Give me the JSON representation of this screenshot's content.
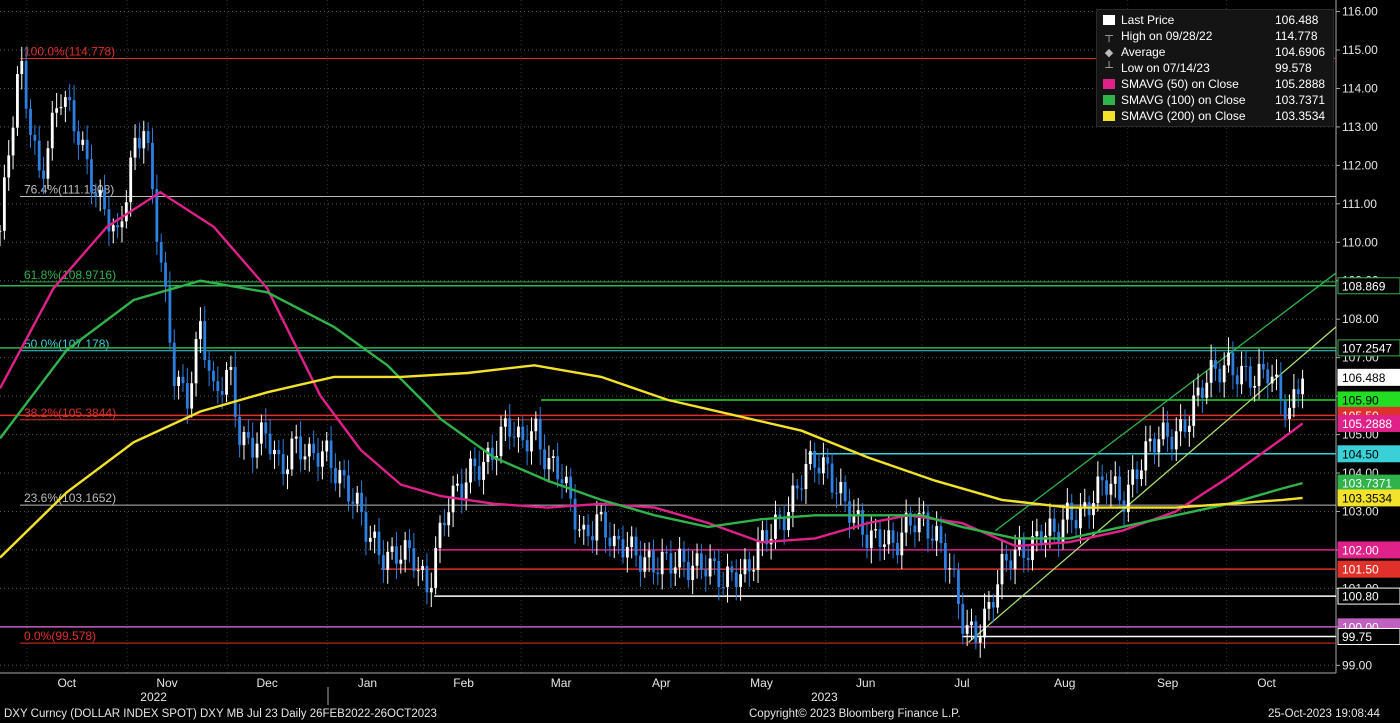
{
  "footer": {
    "left": "DXY Curncy (DOLLAR INDEX SPOT) DXY MB Jul 23  Daily 26FEB2022-26OCT2023",
    "center": "Copyright© 2023 Bloomberg Finance L.P.",
    "right": "25-Oct-2023 19:08:44"
  },
  "legend": [
    {
      "label": "Last Price",
      "value": "106.488",
      "color": "#ffffff",
      "symbol": "box"
    },
    {
      "label": "High on 09/28/22",
      "value": "114.778",
      "color": "#bbbbbb",
      "symbol": "high"
    },
    {
      "label": "Average",
      "value": "104.6906",
      "color": "#bbbbbb",
      "symbol": "avg"
    },
    {
      "label": "Low on 07/14/23",
      "value": "99.578",
      "color": "#bbbbbb",
      "symbol": "low"
    },
    {
      "label": "SMAVG (50)  on Close",
      "value": "105.2888",
      "color": "#e0218a",
      "symbol": "box"
    },
    {
      "label": "SMAVG (100)  on Close",
      "value": "103.7371",
      "color": "#2fb34a",
      "symbol": "box"
    },
    {
      "label": "SMAVG (200)  on Close",
      "value": "103.3534",
      "color": "#f2e22a",
      "symbol": "box"
    }
  ],
  "chart_data": {
    "type": "line",
    "subtype": "candlestick-price-chart",
    "title": "DXY Curncy (DOLLAR INDEX SPOT)",
    "ylim": [
      98.8,
      116.3
    ],
    "y_ticks": [
      "99.00",
      "100.00",
      "101.00",
      "102.00",
      "103.00",
      "104.00",
      "105.00",
      "106.00",
      "107.00",
      "108.00",
      "109.00",
      "110.00",
      "111.00",
      "112.00",
      "113.00",
      "114.00",
      "115.00",
      "116.00"
    ],
    "x_month_labels": [
      {
        "label": "Oct",
        "t": 0.05
      },
      {
        "label": "Nov",
        "t": 0.125
      },
      {
        "label": "Dec",
        "t": 0.2
      },
      {
        "label": "Jan",
        "t": 0.275
      },
      {
        "label": "Feb",
        "t": 0.347
      },
      {
        "label": "Mar",
        "t": 0.42
      },
      {
        "label": "Apr",
        "t": 0.495
      },
      {
        "label": "May",
        "t": 0.57
      },
      {
        "label": "Jun",
        "t": 0.648
      },
      {
        "label": "Jul",
        "t": 0.72
      },
      {
        "label": "Aug",
        "t": 0.797
      },
      {
        "label": "Sep",
        "t": 0.874
      },
      {
        "label": "Oct",
        "t": 0.948
      }
    ],
    "x_year_labels": [
      {
        "label": "2022",
        "t": 0.115
      },
      {
        "label": "2023",
        "t": 0.617
      }
    ],
    "fib_levels": [
      {
        "label": "100.0%(114.778)",
        "value": 114.778,
        "color": "#e0302a"
      },
      {
        "label": "76.4%(111.1908)",
        "value": 111.1908,
        "color": "#bbbbbb"
      },
      {
        "label": "61.8%(108.9716)",
        "value": 108.9716,
        "color": "#2fb34a"
      },
      {
        "label": "50.0%(107.178)",
        "value": 107.178,
        "color": "#3ad0d8"
      },
      {
        "label": "38.2%(105.3844)",
        "value": 105.3844,
        "color": "#e0302a"
      },
      {
        "label": "23.6%(103.1652)",
        "value": 103.1652,
        "color": "#bbbbbb"
      },
      {
        "label": "0.0%(99.578)",
        "value": 99.578,
        "color": "#e0302a"
      }
    ],
    "horizontal_levels": [
      {
        "label": "108.869",
        "value": 108.869,
        "color": "#2fb34a",
        "t_start": 0.0
      },
      {
        "label": "107.2547",
        "value": 107.2547,
        "color": "#2fb34a",
        "t_start": 0.0
      },
      {
        "label": "105.90",
        "value": 105.9,
        "color": "#22dd22",
        "t_start": 0.405
      },
      {
        "label": "105.50",
        "value": 105.5,
        "color": "#e0302a",
        "t_start": 0.0
      },
      {
        "label": "104.50",
        "value": 104.5,
        "color": "#3ad0d8",
        "t_start": 0.605
      },
      {
        "label": "102.00",
        "value": 102.0,
        "color": "#e0218a",
        "t_start": 0.325
      },
      {
        "label": "101.50",
        "value": 101.5,
        "color": "#e0302a",
        "t_start": 0.285
      },
      {
        "label": "100.80",
        "value": 100.8,
        "color": "#ffffff",
        "t_start": 0.325
      },
      {
        "label": "100.00",
        "value": 100.0,
        "color": "#c060c0",
        "t_start": 0.0
      },
      {
        "label": "99.75",
        "value": 99.75,
        "color": "#ffffff",
        "t_start": 0.72
      }
    ],
    "axis_tags": [
      {
        "label": "106.488",
        "value": 106.488,
        "bg": "#ffffff",
        "fg": "#000000"
      },
      {
        "label": "105.2888",
        "value": 105.2888,
        "bg": "#e0218a",
        "fg": "#ffffff"
      },
      {
        "label": "103.7371",
        "value": 103.7371,
        "bg": "#2fb34a",
        "fg": "#ffffff"
      },
      {
        "label": "103.3534",
        "value": 103.3534,
        "bg": "#f2e22a",
        "fg": "#000000"
      }
    ],
    "price_path": [
      [
        0.0,
        110.3
      ],
      [
        0.015,
        114.6
      ],
      [
        0.03,
        111.8
      ],
      [
        0.045,
        113.7
      ],
      [
        0.06,
        112.8
      ],
      [
        0.075,
        111.0
      ],
      [
        0.088,
        109.9
      ],
      [
        0.1,
        112.6
      ],
      [
        0.108,
        113.2
      ],
      [
        0.118,
        110.0
      ],
      [
        0.13,
        106.6
      ],
      [
        0.14,
        106.1
      ],
      [
        0.15,
        107.8
      ],
      [
        0.16,
        105.8
      ],
      [
        0.172,
        106.8
      ],
      [
        0.18,
        105.0
      ],
      [
        0.19,
        104.6
      ],
      [
        0.2,
        104.9
      ],
      [
        0.21,
        104.2
      ],
      [
        0.22,
        104.9
      ],
      [
        0.232,
        104.2
      ],
      [
        0.245,
        104.6
      ],
      [
        0.255,
        104.0
      ],
      [
        0.265,
        103.2
      ],
      [
        0.275,
        102.3
      ],
      [
        0.287,
        102.0
      ],
      [
        0.3,
        101.9
      ],
      [
        0.31,
        101.6
      ],
      [
        0.32,
        101.0
      ],
      [
        0.327,
        102.3
      ],
      [
        0.335,
        103.2
      ],
      [
        0.345,
        103.4
      ],
      [
        0.355,
        104.2
      ],
      [
        0.368,
        104.6
      ],
      [
        0.38,
        105.1
      ],
      [
        0.39,
        104.7
      ],
      [
        0.4,
        105.4
      ],
      [
        0.41,
        104.2
      ],
      [
        0.42,
        103.8
      ],
      [
        0.428,
        103.1
      ],
      [
        0.437,
        102.5
      ],
      [
        0.447,
        102.8
      ],
      [
        0.46,
        101.9
      ],
      [
        0.47,
        102.3
      ],
      [
        0.48,
        101.9
      ],
      [
        0.49,
        101.4
      ],
      [
        0.5,
        101.6
      ],
      [
        0.51,
        101.9
      ],
      [
        0.52,
        101.6
      ],
      [
        0.53,
        101.4
      ],
      [
        0.54,
        101.2
      ],
      [
        0.55,
        101.6
      ],
      [
        0.56,
        101.4
      ],
      [
        0.57,
        102.0
      ],
      [
        0.58,
        102.7
      ],
      [
        0.59,
        103.2
      ],
      [
        0.6,
        103.8
      ],
      [
        0.61,
        104.2
      ],
      [
        0.62,
        104.2
      ],
      [
        0.63,
        103.5
      ],
      [
        0.64,
        102.6
      ],
      [
        0.65,
        102.2
      ],
      [
        0.66,
        102.6
      ],
      [
        0.67,
        102.1
      ],
      [
        0.68,
        102.5
      ],
      [
        0.69,
        102.8
      ],
      [
        0.7,
        102.6
      ],
      [
        0.71,
        101.6
      ],
      [
        0.717,
        100.5
      ],
      [
        0.722,
        99.8
      ],
      [
        0.73,
        99.9
      ],
      [
        0.74,
        100.6
      ],
      [
        0.75,
        101.4
      ],
      [
        0.76,
        101.8
      ],
      [
        0.77,
        102.2
      ],
      [
        0.78,
        102.6
      ],
      [
        0.79,
        102.2
      ],
      [
        0.8,
        102.9
      ],
      [
        0.81,
        103.1
      ],
      [
        0.82,
        103.5
      ],
      [
        0.83,
        103.6
      ],
      [
        0.84,
        103.3
      ],
      [
        0.85,
        104.2
      ],
      [
        0.86,
        104.6
      ],
      [
        0.87,
        104.8
      ],
      [
        0.88,
        105.1
      ],
      [
        0.89,
        105.6
      ],
      [
        0.9,
        106.1
      ],
      [
        0.91,
        106.6
      ],
      [
        0.92,
        107.0
      ],
      [
        0.93,
        106.6
      ],
      [
        0.94,
        106.2
      ],
      [
        0.95,
        106.7
      ],
      [
        0.96,
        106.1
      ],
      [
        0.965,
        105.6
      ],
      [
        0.975,
        106.488
      ]
    ],
    "series": [
      {
        "name": "SMAVG (50)  on Close",
        "color": "#e0218a",
        "points": [
          [
            0.0,
            106.2
          ],
          [
            0.04,
            108.8
          ],
          [
            0.08,
            110.4
          ],
          [
            0.12,
            111.3
          ],
          [
            0.16,
            110.4
          ],
          [
            0.2,
            108.8
          ],
          [
            0.24,
            106.0
          ],
          [
            0.27,
            104.6
          ],
          [
            0.3,
            103.7
          ],
          [
            0.33,
            103.4
          ],
          [
            0.37,
            103.2
          ],
          [
            0.41,
            103.1
          ],
          [
            0.45,
            103.2
          ],
          [
            0.49,
            103.1
          ],
          [
            0.53,
            102.7
          ],
          [
            0.57,
            102.2
          ],
          [
            0.61,
            102.3
          ],
          [
            0.65,
            102.7
          ],
          [
            0.68,
            102.9
          ],
          [
            0.72,
            102.7
          ],
          [
            0.76,
            102.1
          ],
          [
            0.8,
            102.2
          ],
          [
            0.84,
            102.5
          ],
          [
            0.88,
            103.0
          ],
          [
            0.92,
            103.9
          ],
          [
            0.96,
            104.9
          ],
          [
            0.975,
            105.2888
          ]
        ]
      },
      {
        "name": "SMAVG (100)  on Close",
        "color": "#2fb34a",
        "points": [
          [
            0.0,
            104.9
          ],
          [
            0.05,
            107.2
          ],
          [
            0.1,
            108.5
          ],
          [
            0.15,
            109.0
          ],
          [
            0.2,
            108.7
          ],
          [
            0.25,
            107.8
          ],
          [
            0.29,
            106.8
          ],
          [
            0.33,
            105.4
          ],
          [
            0.37,
            104.4
          ],
          [
            0.41,
            103.8
          ],
          [
            0.45,
            103.3
          ],
          [
            0.49,
            102.9
          ],
          [
            0.53,
            102.6
          ],
          [
            0.57,
            102.8
          ],
          [
            0.61,
            102.9
          ],
          [
            0.65,
            102.9
          ],
          [
            0.69,
            102.9
          ],
          [
            0.72,
            102.6
          ],
          [
            0.76,
            102.3
          ],
          [
            0.8,
            102.3
          ],
          [
            0.84,
            102.6
          ],
          [
            0.88,
            102.9
          ],
          [
            0.92,
            103.2
          ],
          [
            0.96,
            103.6
          ],
          [
            0.975,
            103.7371
          ]
        ]
      },
      {
        "name": "SMAVG (200)  on Close",
        "color": "#f2e22a",
        "points": [
          [
            0.0,
            101.8
          ],
          [
            0.05,
            103.5
          ],
          [
            0.1,
            104.8
          ],
          [
            0.15,
            105.6
          ],
          [
            0.2,
            106.1
          ],
          [
            0.25,
            106.5
          ],
          [
            0.3,
            106.5
          ],
          [
            0.35,
            106.6
          ],
          [
            0.4,
            106.8
          ],
          [
            0.45,
            106.5
          ],
          [
            0.5,
            105.9
          ],
          [
            0.55,
            105.5
          ],
          [
            0.6,
            105.1
          ],
          [
            0.65,
            104.4
          ],
          [
            0.7,
            103.8
          ],
          [
            0.75,
            103.3
          ],
          [
            0.8,
            103.1
          ],
          [
            0.84,
            103.1
          ],
          [
            0.88,
            103.1
          ],
          [
            0.92,
            103.2
          ],
          [
            0.96,
            103.3
          ],
          [
            0.975,
            103.3534
          ]
        ]
      }
    ],
    "trendlines": [
      {
        "name": "channel-upper",
        "color": "#2fb34a",
        "from": [
          0.745,
          102.5
        ],
        "to": [
          1.0,
          109.2
        ]
      },
      {
        "name": "channel-lower",
        "color": "#a8e070",
        "from": [
          0.725,
          99.6
        ],
        "to": [
          1.0,
          107.8
        ]
      }
    ]
  }
}
